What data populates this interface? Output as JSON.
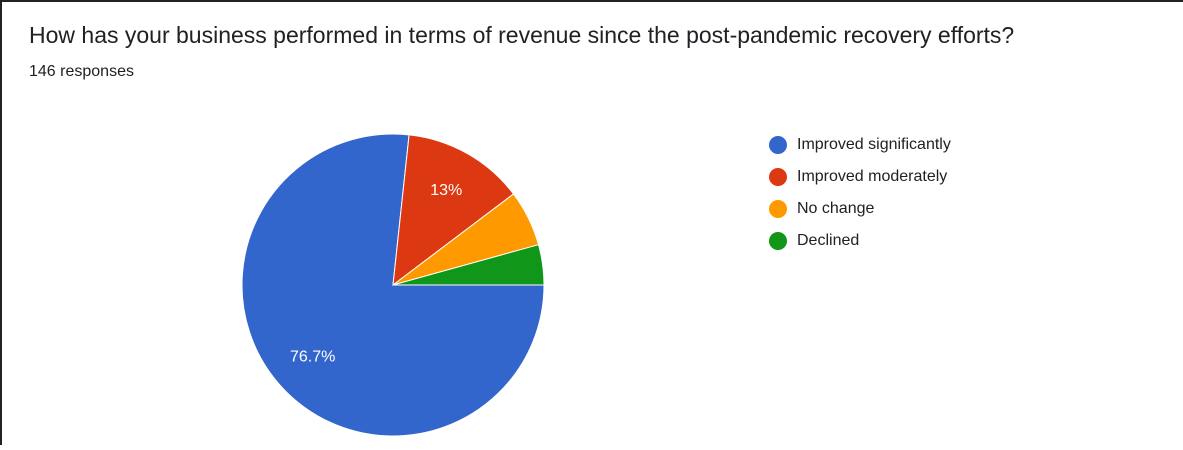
{
  "chart_data": {
    "type": "pie",
    "title": "How has your business performed in terms of revenue since the post-pandemic recovery efforts?",
    "subtitle": "146 responses",
    "categories": [
      "Improved significantly",
      "Improved moderately",
      "No change",
      "Declined"
    ],
    "values": [
      76.7,
      13,
      6,
      4.3
    ],
    "value_labels": [
      "76.7%",
      "13%",
      null,
      null
    ],
    "colors": [
      "#3366cc",
      "#dc3912",
      "#ff9900",
      "#109618"
    ],
    "legend": "right"
  }
}
